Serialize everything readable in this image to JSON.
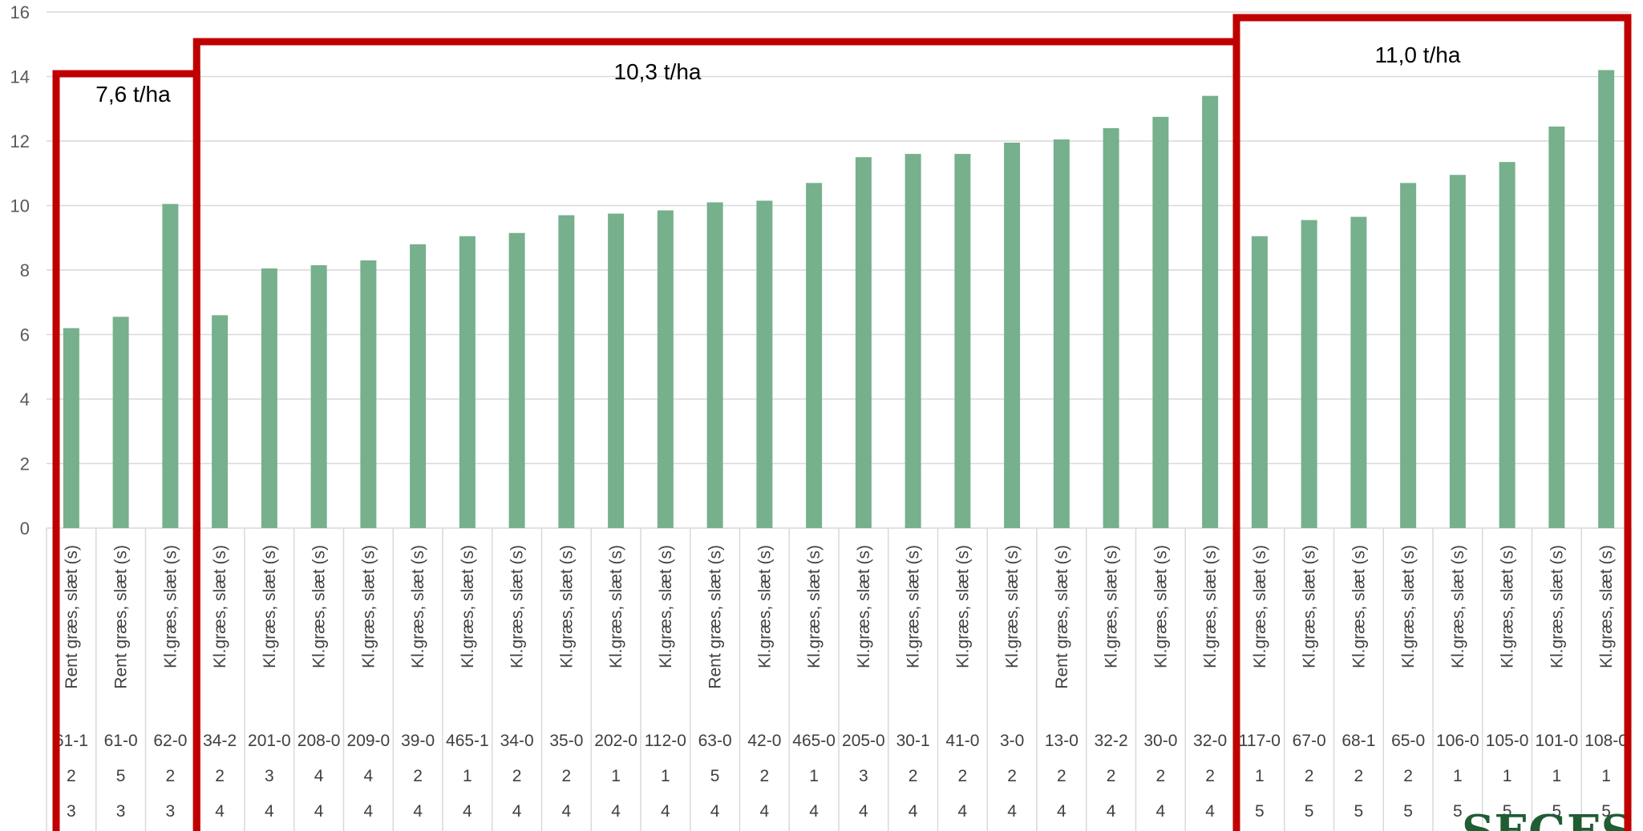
{
  "colors": {
    "bar": "#76b08c",
    "grid": "#d9d9d9",
    "box": "#c00000",
    "logo": "#1f5d33"
  },
  "logo": {
    "text": "SEGES"
  },
  "chart_data": {
    "type": "bar",
    "title": "",
    "xlabel": "",
    "ylabel": "",
    "ylim": [
      0,
      16
    ],
    "yticks": [
      0,
      2,
      4,
      6,
      8,
      10,
      12,
      14,
      16
    ],
    "grid": true,
    "categories": [
      {
        "name": "Rent græs, slæt (s)",
        "code": "61-1",
        "row2": "2",
        "row3": "3"
      },
      {
        "name": "Rent græs, slæt (s)",
        "code": "61-0",
        "row2": "5",
        "row3": "3"
      },
      {
        "name": "Kl.græs, slæt (s)",
        "code": "62-0",
        "row2": "2",
        "row3": "3"
      },
      {
        "name": "Kl.græs, slæt (s)",
        "code": "34-2",
        "row2": "2",
        "row3": "4"
      },
      {
        "name": "Kl.græs, slæt (s)",
        "code": "201-0",
        "row2": "3",
        "row3": "4"
      },
      {
        "name": "Kl.græs, slæt (s)",
        "code": "208-0",
        "row2": "4",
        "row3": "4"
      },
      {
        "name": "Kl.græs, slæt (s)",
        "code": "209-0",
        "row2": "4",
        "row3": "4"
      },
      {
        "name": "Kl.græs, slæt (s)",
        "code": "39-0",
        "row2": "2",
        "row3": "4"
      },
      {
        "name": "Kl.græs, slæt (s)",
        "code": "465-1",
        "row2": "1",
        "row3": "4"
      },
      {
        "name": "Kl.græs, slæt (s)",
        "code": "34-0",
        "row2": "2",
        "row3": "4"
      },
      {
        "name": "Kl.græs, slæt (s)",
        "code": "35-0",
        "row2": "2",
        "row3": "4"
      },
      {
        "name": "Kl.græs, slæt (s)",
        "code": "202-0",
        "row2": "1",
        "row3": "4"
      },
      {
        "name": "Kl.græs, slæt (s)",
        "code": "112-0",
        "row2": "1",
        "row3": "4"
      },
      {
        "name": "Rent græs, slæt (s)",
        "code": "63-0",
        "row2": "5",
        "row3": "4"
      },
      {
        "name": "Kl.græs, slæt (s)",
        "code": "42-0",
        "row2": "2",
        "row3": "4"
      },
      {
        "name": "Kl.græs, slæt (s)",
        "code": "465-0",
        "row2": "1",
        "row3": "4"
      },
      {
        "name": "Kl.græs, slæt (s)",
        "code": "205-0",
        "row2": "3",
        "row3": "4"
      },
      {
        "name": "Kl.græs, slæt (s)",
        "code": "30-1",
        "row2": "2",
        "row3": "4"
      },
      {
        "name": "Kl.græs, slæt (s)",
        "code": "41-0",
        "row2": "2",
        "row3": "4"
      },
      {
        "name": "Kl.græs, slæt (s)",
        "code": "3-0",
        "row2": "2",
        "row3": "4"
      },
      {
        "name": "Rent græs, slæt (s)",
        "code": "13-0",
        "row2": "2",
        "row3": "4"
      },
      {
        "name": "Kl.græs, slæt (s)",
        "code": "32-2",
        "row2": "2",
        "row3": "4"
      },
      {
        "name": "Kl.græs, slæt (s)",
        "code": "30-0",
        "row2": "2",
        "row3": "4"
      },
      {
        "name": "Kl.græs, slæt (s)",
        "code": "32-0",
        "row2": "2",
        "row3": "4"
      },
      {
        "name": "Kl.græs, slæt (s)",
        "code": "117-0",
        "row2": "1",
        "row3": "5"
      },
      {
        "name": "Kl.græs, slæt (s)",
        "code": "67-0",
        "row2": "2",
        "row3": "5"
      },
      {
        "name": "Kl.græs, slæt (s)",
        "code": "68-1",
        "row2": "2",
        "row3": "5"
      },
      {
        "name": "Kl.græs, slæt (s)",
        "code": "65-0",
        "row2": "2",
        "row3": "5"
      },
      {
        "name": "Kl.græs, slæt (s)",
        "code": "106-0",
        "row2": "1",
        "row3": "5"
      },
      {
        "name": "Kl.græs, slæt (s)",
        "code": "105-0",
        "row2": "1",
        "row3": "5"
      },
      {
        "name": "Kl.græs, slæt (s)",
        "code": "101-0",
        "row2": "1",
        "row3": "5"
      },
      {
        "name": "Kl.græs, slæt (s)",
        "code": "108-0",
        "row2": "1",
        "row3": "5"
      }
    ],
    "values": [
      6.2,
      6.55,
      10.05,
      6.6,
      8.05,
      8.15,
      8.3,
      8.8,
      9.05,
      9.15,
      9.7,
      9.75,
      9.85,
      10.1,
      10.15,
      10.7,
      11.5,
      11.6,
      11.6,
      11.95,
      12.05,
      12.4,
      12.75,
      13.4,
      9.05,
      9.55,
      9.65,
      10.7,
      10.95,
      11.35,
      12.45,
      14.2
    ],
    "groups": [
      {
        "label": "7,6  t/ha",
        "start": 0,
        "end": 2
      },
      {
        "label": "10,3 t/ha",
        "start": 3,
        "end": 23
      },
      {
        "label": "11,0 t/ha",
        "start": 24,
        "end": 31
      }
    ]
  }
}
